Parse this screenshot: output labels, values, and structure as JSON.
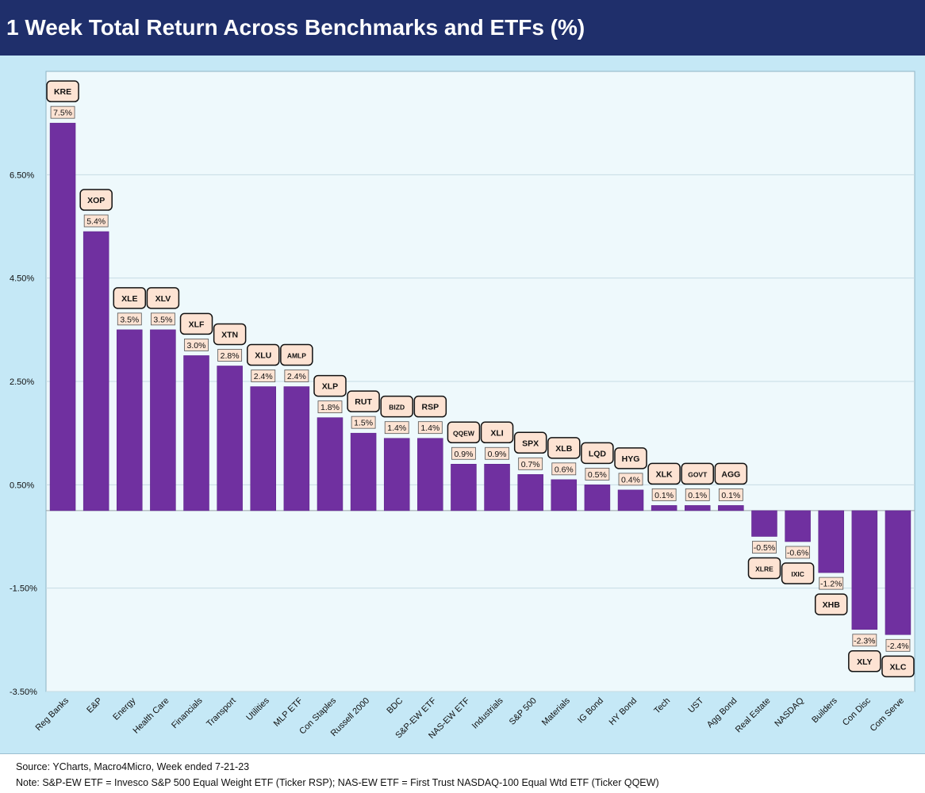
{
  "header": {
    "title": "1 Week Total Return Across Benchmarks and ETFs (%)"
  },
  "footer": {
    "source": "Source: YCharts, Macro4Micro, Week ended 7-21-23",
    "note": "Note: S&P-EW ETF = Invesco S&P 500 Equal Weight ETF (Ticker RSP); NAS-EW ETF = First Trust NASDAQ-100 Equal Wtd ETF (Ticker QQEW)"
  },
  "colors": {
    "bar": "#7030a0",
    "plot_background": "#eef9fc",
    "frame_background": "#c5e8f6",
    "label_box": "#fde3d3",
    "title_background": "#1f2f6b"
  },
  "chart_data": {
    "type": "bar",
    "title": "",
    "xlabel": "",
    "ylabel": "",
    "ylim": [
      -3.5,
      8.5
    ],
    "y_ticks": [
      6.5,
      4.5,
      2.5,
      0.5,
      -1.5,
      -3.5
    ],
    "y_tick_labels": [
      "6.50%",
      "4.50%",
      "2.50%",
      "0.50%",
      "-1.50%",
      "-3.50%"
    ],
    "grid": true,
    "legend": "none",
    "categories": [
      "Reg Banks",
      "E&P",
      "Energy",
      "Health Care",
      "Financials",
      "Transport",
      "Utilities",
      "MLP ETF",
      "Con Staples",
      "Russell 2000",
      "BDC",
      "S&P-EW ETF",
      "NAS-EW ETF",
      "Industrials",
      "S&P 500",
      "Materials",
      "IG Bond",
      "HY Bond",
      "Tech",
      "UST",
      "Agg Bond",
      "Real Estate",
      "NASDAQ",
      "Builders",
      "Con Disc",
      "Com Serve"
    ],
    "tickers": [
      "KRE",
      "XOP",
      "XLE",
      "XLV",
      "XLF",
      "XTN",
      "XLU",
      "AMLP",
      "XLP",
      "RUT",
      "BIZD",
      "RSP",
      "QQEW",
      "XLI",
      "SPX",
      "XLB",
      "LQD",
      "HYG",
      "XLK",
      "GOVT",
      "AGG",
      "XLRE",
      "IXIC",
      "XHB",
      "XLY",
      "XLC"
    ],
    "values": [
      7.5,
      5.4,
      3.5,
      3.5,
      3.0,
      2.8,
      2.4,
      2.4,
      1.8,
      1.5,
      1.4,
      1.4,
      0.9,
      0.9,
      0.7,
      0.6,
      0.5,
      0.4,
      0.1,
      0.1,
      0.1,
      -0.5,
      -0.6,
      -1.2,
      -2.3,
      -2.4
    ],
    "value_labels": [
      "7.5%",
      "5.4%",
      "3.5%",
      "3.5%",
      "3.0%",
      "2.8%",
      "2.4%",
      "2.4%",
      "1.8%",
      "1.5%",
      "1.4%",
      "1.4%",
      "0.9%",
      "0.9%",
      "0.7%",
      "0.6%",
      "0.5%",
      "0.4%",
      "0.1%",
      "0.1%",
      "0.1%",
      "-0.5%",
      "-0.6%",
      "-1.2%",
      "-2.3%",
      "-2.4%"
    ]
  }
}
